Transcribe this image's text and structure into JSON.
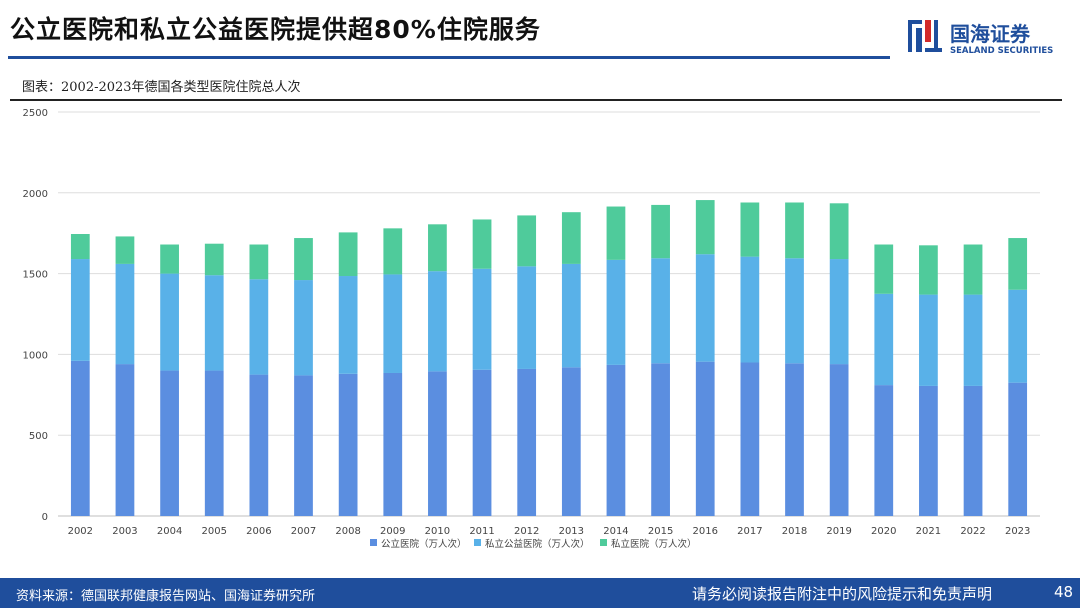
{
  "header": {
    "title": "公立医院和私立公益医院提供超80%住院服务",
    "logo_cn": "国海证券",
    "logo_en": "SEALAND SECURITIES"
  },
  "caption": "图表：2002-2023年德国各类型医院住院总人次",
  "colors": {
    "brand_blue": "#1f4e9c",
    "brand_red": "#d22a2a",
    "public": "#5b8ee0",
    "nonprofit": "#59b1e8",
    "private": "#4fcb9b",
    "grid": "#dddddd",
    "axis_text": "#444444"
  },
  "chart_data": {
    "type": "bar",
    "stacked": true,
    "title": "2002-2023年德国各类型医院住院总人次",
    "xlabel": "",
    "ylabel": "",
    "ylim": [
      0,
      2500
    ],
    "yticks": [
      0,
      500,
      1000,
      1500,
      2000,
      2500
    ],
    "grid": true,
    "legend_position": "bottom",
    "categories": [
      "2002",
      "2003",
      "2004",
      "2005",
      "2006",
      "2007",
      "2008",
      "2009",
      "2010",
      "2011",
      "2012",
      "2013",
      "2014",
      "2015",
      "2016",
      "2017",
      "2018",
      "2019",
      "2020",
      "2021",
      "2022",
      "2023"
    ],
    "series": [
      {
        "name": "公立医院（万人次）",
        "values": [
          960,
          940,
          900,
          900,
          875,
          870,
          880,
          885,
          895,
          905,
          910,
          920,
          935,
          945,
          955,
          950,
          945,
          940,
          810,
          805,
          805,
          825
        ]
      },
      {
        "name": "私立公益医院（万人次）",
        "values": [
          630,
          620,
          600,
          590,
          590,
          590,
          605,
          610,
          620,
          625,
          635,
          640,
          650,
          650,
          665,
          655,
          650,
          650,
          565,
          565,
          565,
          575
        ]
      },
      {
        "name": "私立医院（万人次）",
        "values": [
          155,
          170,
          180,
          195,
          215,
          260,
          270,
          285,
          290,
          305,
          315,
          320,
          330,
          330,
          335,
          335,
          345,
          345,
          305,
          305,
          310,
          320
        ]
      }
    ]
  },
  "footer": {
    "source": "资料来源：德国联邦健康报告网站、国海证券研究所",
    "disclaimer": "请务必阅读报告附注中的风险提示和免责声明",
    "page": "48"
  }
}
